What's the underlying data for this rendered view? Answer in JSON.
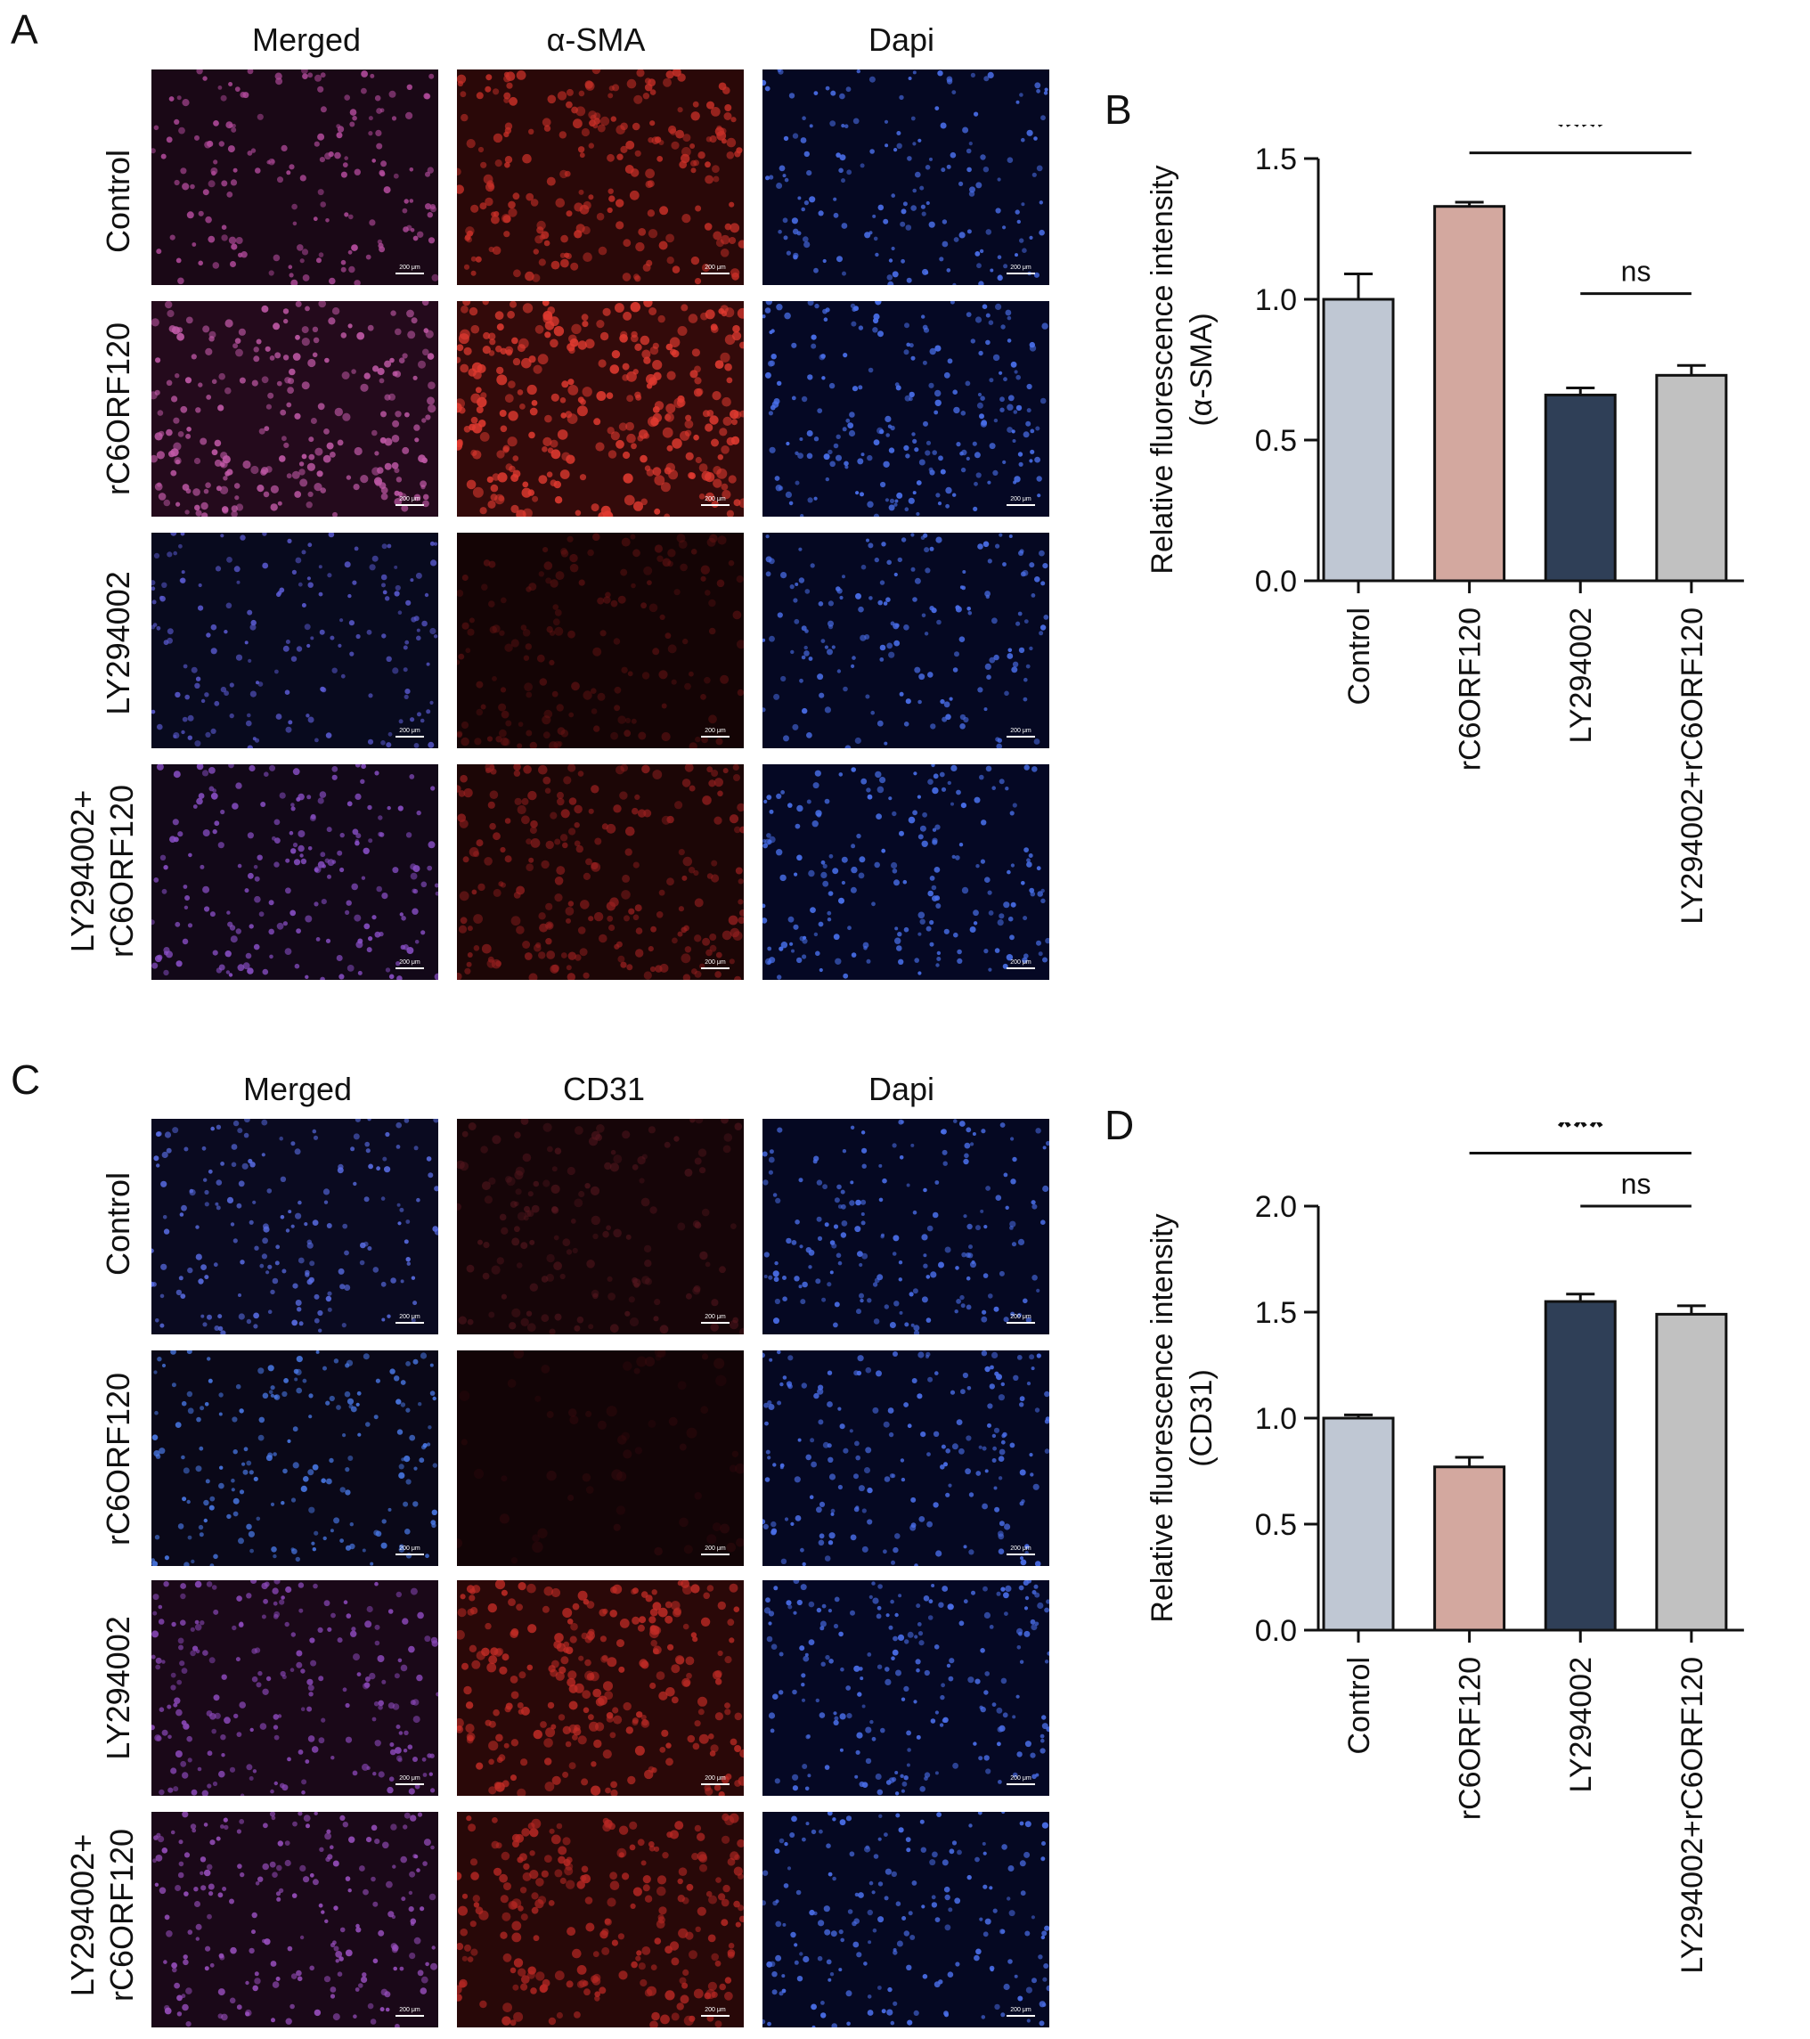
{
  "panel_labels": {
    "A": "A",
    "B": "B",
    "C": "C",
    "D": "D"
  },
  "panelA": {
    "columns": [
      "Merged",
      "α-SMA",
      "Dapi"
    ],
    "rows": [
      {
        "label_lines": [
          "Control"
        ]
      },
      {
        "label_lines": [
          "rC6ORF120"
        ]
      },
      {
        "label_lines": [
          "LY294002"
        ]
      },
      {
        "label_lines": [
          "LY294002+",
          "rC6ORF120"
        ]
      }
    ]
  },
  "panelC": {
    "columns": [
      "Merged",
      "CD31",
      "Dapi"
    ],
    "rows": [
      {
        "label_lines": [
          "Control"
        ]
      },
      {
        "label_lines": [
          "rC6ORF120"
        ]
      },
      {
        "label_lines": [
          "LY294002"
        ]
      },
      {
        "label_lines": [
          "LY294002+",
          "rC6ORF120"
        ]
      }
    ]
  },
  "scale_bar_label": "200 μm",
  "chart_data": [
    {
      "type": "bar",
      "panel": "B",
      "ylabel_lines": [
        "Relative fluorescence intensity",
        "(α-SMA)"
      ],
      "categories": [
        "Control",
        "rC6ORF120",
        "LY294002",
        "LY294002+rC6ORF120"
      ],
      "values": [
        1.0,
        1.33,
        0.66,
        0.73
      ],
      "errors": [
        0.09,
        0.015,
        0.025,
        0.035
      ],
      "colors": [
        "#bfc7d3",
        "#d3a89f",
        "#2f3f57",
        "#c1c1c1"
      ],
      "ylim": [
        0,
        1.5
      ],
      "yticks": [
        "0.0",
        "0.5",
        "1.0",
        "1.5"
      ],
      "ytick_values": [
        0,
        0.5,
        1.0,
        1.5
      ],
      "significance": [
        {
          "from": 1,
          "to": 3,
          "label": "***",
          "y": 1.52
        },
        {
          "from": 2,
          "to": 3,
          "label": "ns",
          "y": 1.02
        }
      ]
    },
    {
      "type": "bar",
      "panel": "D",
      "ylabel_lines": [
        "Relative fluorescence intensity",
        "(CD31)"
      ],
      "categories": [
        "Control",
        "rC6ORF120",
        "LY294002",
        "LY294002+rC6ORF120"
      ],
      "values": [
        1.0,
        0.77,
        1.55,
        1.49
      ],
      "errors": [
        0.015,
        0.045,
        0.035,
        0.04
      ],
      "colors": [
        "#bfc7d3",
        "#d3a89f",
        "#2f3f57",
        "#c1c1c1"
      ],
      "ylim": [
        0,
        2.0
      ],
      "yticks": [
        "0.0",
        "0.5",
        "1.0",
        "1.5",
        "2.0"
      ],
      "ytick_values": [
        0,
        0.5,
        1.0,
        1.5,
        2.0
      ],
      "significance": [
        {
          "from": 1,
          "to": 3,
          "label": "***",
          "y": 2.25
        },
        {
          "from": 2,
          "to": 3,
          "label": "ns",
          "y": 2.0
        }
      ]
    }
  ]
}
